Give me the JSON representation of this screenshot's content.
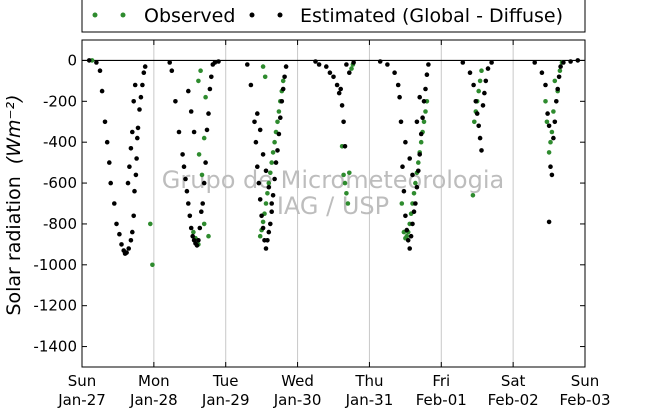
{
  "chart_data": {
    "type": "scatter",
    "ylabel": "Solar radiation",
    "ylabel_unit": "(Wm⁻²)",
    "ylim": [
      -1500,
      100
    ],
    "yticks": [
      0,
      -200,
      -400,
      -600,
      -800,
      -1000,
      -1200,
      -1400
    ],
    "xlim": [
      0,
      7
    ],
    "xticks": [
      {
        "day": "Sun",
        "date": "Jan-27"
      },
      {
        "day": "Mon",
        "date": "Jan-28"
      },
      {
        "day": "Tue",
        "date": "Jan-29"
      },
      {
        "day": "Wed",
        "date": "Jan-30"
      },
      {
        "day": "Thu",
        "date": "Jan-31"
      },
      {
        "day": "Fri",
        "date": "Feb-01"
      },
      {
        "day": "Sat",
        "date": "Feb-02"
      },
      {
        "day": "Sun",
        "date": "Feb-03"
      }
    ],
    "grid": "vertical",
    "legend_position": "top",
    "series": [
      {
        "name": "Observed",
        "color": "#2e8b2e",
        "points": [
          [
            0.14,
            0
          ],
          [
            0.95,
            -800
          ],
          [
            0.98,
            -1000
          ],
          [
            1.55,
            -840
          ],
          [
            1.58,
            -870
          ],
          [
            1.62,
            -900
          ],
          [
            1.62,
            -100
          ],
          [
            1.65,
            -50
          ],
          [
            1.63,
            -460
          ],
          [
            1.67,
            -560
          ],
          [
            1.7,
            -800
          ],
          [
            1.76,
            -860
          ],
          [
            1.7,
            -380
          ],
          [
            1.72,
            -180
          ],
          [
            2.52,
            -30
          ],
          [
            2.55,
            -80
          ],
          [
            2.48,
            -860
          ],
          [
            2.5,
            -830
          ],
          [
            2.52,
            -790
          ],
          [
            2.54,
            -750
          ],
          [
            2.56,
            -700
          ],
          [
            2.58,
            -650
          ],
          [
            2.6,
            -600
          ],
          [
            2.62,
            -550
          ],
          [
            2.64,
            -500
          ],
          [
            2.66,
            -450
          ],
          [
            2.68,
            -400
          ],
          [
            2.7,
            -350
          ],
          [
            2.72,
            -300
          ],
          [
            2.74,
            -250
          ],
          [
            2.76,
            -200
          ],
          [
            2.78,
            -150
          ],
          [
            2.8,
            -100
          ],
          [
            3.62,
            -420
          ],
          [
            3.64,
            -560
          ],
          [
            3.66,
            -600
          ],
          [
            3.68,
            -650
          ],
          [
            3.7,
            -700
          ],
          [
            3.72,
            -550
          ],
          [
            3.75,
            -40
          ],
          [
            3.77,
            -20
          ],
          [
            4.45,
            -700
          ],
          [
            4.48,
            -840
          ],
          [
            4.5,
            -870
          ],
          [
            4.52,
            -860
          ],
          [
            4.54,
            -840
          ],
          [
            4.56,
            -800
          ],
          [
            4.58,
            -750
          ],
          [
            4.6,
            -700
          ],
          [
            4.62,
            -650
          ],
          [
            4.64,
            -600
          ],
          [
            4.66,
            -550
          ],
          [
            4.68,
            -500
          ],
          [
            4.7,
            -450
          ],
          [
            4.72,
            -400
          ],
          [
            4.74,
            -350
          ],
          [
            4.76,
            -300
          ],
          [
            4.78,
            -250
          ],
          [
            4.8,
            -200
          ],
          [
            5.44,
            -660
          ],
          [
            5.46,
            -300
          ],
          [
            5.48,
            -250
          ],
          [
            5.5,
            -200
          ],
          [
            5.52,
            -150
          ],
          [
            5.54,
            -100
          ],
          [
            5.56,
            -50
          ],
          [
            6.45,
            -200
          ],
          [
            6.47,
            -300
          ],
          [
            6.5,
            -450
          ],
          [
            6.52,
            -400
          ],
          [
            6.54,
            -350
          ],
          [
            6.56,
            -250
          ],
          [
            6.58,
            -100
          ],
          [
            6.62,
            -150
          ],
          [
            6.65,
            -50
          ],
          [
            6.68,
            -10
          ]
        ]
      },
      {
        "name": "Estimated (Global - Diffuse)",
        "color": "#000000",
        "points": [
          [
            0.1,
            0
          ],
          [
            0.2,
            -10
          ],
          [
            0.25,
            -50
          ],
          [
            0.28,
            -150
          ],
          [
            0.32,
            -300
          ],
          [
            0.35,
            -400
          ],
          [
            0.38,
            -500
          ],
          [
            0.4,
            -600
          ],
          [
            0.45,
            -700
          ],
          [
            0.48,
            -800
          ],
          [
            0.52,
            -850
          ],
          [
            0.55,
            -900
          ],
          [
            0.58,
            -930
          ],
          [
            0.6,
            -945
          ],
          [
            0.62,
            -940
          ],
          [
            0.65,
            -920
          ],
          [
            0.68,
            -880
          ],
          [
            0.7,
            -840
          ],
          [
            0.72,
            -760
          ],
          [
            0.73,
            -640
          ],
          [
            0.75,
            -560
          ],
          [
            0.76,
            -480
          ],
          [
            0.77,
            -380
          ],
          [
            0.78,
            -330
          ],
          [
            0.8,
            -240
          ],
          [
            0.82,
            -180
          ],
          [
            0.84,
            -120
          ],
          [
            0.86,
            -60
          ],
          [
            0.88,
            -30
          ],
          [
            0.64,
            -600
          ],
          [
            0.66,
            -520
          ],
          [
            0.68,
            -430
          ],
          [
            0.7,
            -350
          ],
          [
            0.72,
            -200
          ],
          [
            0.74,
            -120
          ],
          [
            1.22,
            -10
          ],
          [
            1.25,
            -50
          ],
          [
            1.3,
            -200
          ],
          [
            1.35,
            -350
          ],
          [
            1.4,
            -460
          ],
          [
            1.42,
            -520
          ],
          [
            1.44,
            -580
          ],
          [
            1.46,
            -640
          ],
          [
            1.48,
            -700
          ],
          [
            1.5,
            -760
          ],
          [
            1.52,
            -820
          ],
          [
            1.54,
            -860
          ],
          [
            1.56,
            -880
          ],
          [
            1.58,
            -895
          ],
          [
            1.6,
            -905
          ],
          [
            1.62,
            -880
          ],
          [
            1.64,
            -820
          ],
          [
            1.66,
            -740
          ],
          [
            1.68,
            -700
          ],
          [
            1.7,
            -600
          ],
          [
            1.72,
            -500
          ],
          [
            1.74,
            -340
          ],
          [
            1.76,
            -260
          ],
          [
            1.78,
            -140
          ],
          [
            1.8,
            -80
          ],
          [
            1.82,
            -20
          ],
          [
            1.48,
            -150
          ],
          [
            1.52,
            -250
          ],
          [
            1.56,
            -350
          ],
          [
            1.85,
            -10
          ],
          [
            1.9,
            -5
          ],
          [
            2.3,
            -20
          ],
          [
            2.35,
            -120
          ],
          [
            2.4,
            -300
          ],
          [
            2.42,
            -400
          ],
          [
            2.44,
            -520
          ],
          [
            2.46,
            -600
          ],
          [
            2.48,
            -680
          ],
          [
            2.5,
            -760
          ],
          [
            2.52,
            -820
          ],
          [
            2.54,
            -880
          ],
          [
            2.56,
            -920
          ],
          [
            2.58,
            -880
          ],
          [
            2.6,
            -840
          ],
          [
            2.62,
            -800
          ],
          [
            2.64,
            -740
          ],
          [
            2.66,
            -660
          ],
          [
            2.68,
            -580
          ],
          [
            2.7,
            -500
          ],
          [
            2.72,
            -440
          ],
          [
            2.74,
            -360
          ],
          [
            2.76,
            -280
          ],
          [
            2.78,
            -200
          ],
          [
            2.8,
            -140
          ],
          [
            2.82,
            -80
          ],
          [
            2.84,
            -30
          ],
          [
            2.44,
            -260
          ],
          [
            2.48,
            -340
          ],
          [
            2.52,
            -460
          ],
          [
            2.56,
            -540
          ],
          [
            2.6,
            -620
          ],
          [
            2.64,
            -700
          ],
          [
            3.25,
            -5
          ],
          [
            3.3,
            -20
          ],
          [
            3.4,
            -30
          ],
          [
            3.45,
            -60
          ],
          [
            3.5,
            -80
          ],
          [
            3.55,
            -120
          ],
          [
            3.58,
            -160
          ],
          [
            3.6,
            -140
          ],
          [
            3.62,
            -220
          ],
          [
            3.64,
            -300
          ],
          [
            3.66,
            -420
          ],
          [
            3.68,
            -20
          ],
          [
            3.72,
            -60
          ],
          [
            3.78,
            -10
          ],
          [
            4.15,
            -5
          ],
          [
            4.25,
            -20
          ],
          [
            4.35,
            -60
          ],
          [
            4.4,
            -120
          ],
          [
            4.42,
            -180
          ],
          [
            4.44,
            -300
          ],
          [
            4.46,
            -520
          ],
          [
            4.48,
            -640
          ],
          [
            4.5,
            -760
          ],
          [
            4.52,
            -830
          ],
          [
            4.54,
            -880
          ],
          [
            4.56,
            -920
          ],
          [
            4.58,
            -860
          ],
          [
            4.6,
            -800
          ],
          [
            4.62,
            -740
          ],
          [
            4.64,
            -700
          ],
          [
            4.66,
            -620
          ],
          [
            4.68,
            -540
          ],
          [
            4.7,
            -460
          ],
          [
            4.72,
            -360
          ],
          [
            4.74,
            -280
          ],
          [
            4.76,
            -200
          ],
          [
            4.78,
            -140
          ],
          [
            4.8,
            -70
          ],
          [
            4.82,
            -20
          ],
          [
            4.5,
            -400
          ],
          [
            4.56,
            -480
          ],
          [
            4.6,
            -560
          ],
          [
            4.66,
            -300
          ],
          [
            4.7,
            -180
          ],
          [
            5.3,
            -10
          ],
          [
            5.4,
            -60
          ],
          [
            5.45,
            -120
          ],
          [
            5.48,
            -200
          ],
          [
            5.5,
            -260
          ],
          [
            5.52,
            -320
          ],
          [
            5.54,
            -380
          ],
          [
            5.56,
            -440
          ],
          [
            5.58,
            -220
          ],
          [
            5.6,
            -160
          ],
          [
            5.62,
            -100
          ],
          [
            5.65,
            -40
          ],
          [
            5.7,
            -10
          ],
          [
            6.3,
            -10
          ],
          [
            6.4,
            -60
          ],
          [
            6.45,
            -120
          ],
          [
            6.48,
            -260
          ],
          [
            6.5,
            -320
          ],
          [
            6.52,
            -520
          ],
          [
            6.54,
            -560
          ],
          [
            6.56,
            -380
          ],
          [
            6.58,
            -300
          ],
          [
            6.6,
            -200
          ],
          [
            6.62,
            -140
          ],
          [
            6.64,
            -80
          ],
          [
            6.66,
            -30
          ],
          [
            6.5,
            -790
          ],
          [
            6.7,
            -10
          ],
          [
            6.8,
            -5
          ],
          [
            6.9,
            0
          ]
        ]
      }
    ]
  },
  "legend": {
    "items": [
      {
        "label": "Observed",
        "color": "#2e8b2e"
      },
      {
        "label": "Estimated (Global - Diffuse)",
        "color": "#000000"
      }
    ]
  },
  "watermark": {
    "line1": "Grupo de Micrometeorologia",
    "line2": "IAG / USP"
  }
}
